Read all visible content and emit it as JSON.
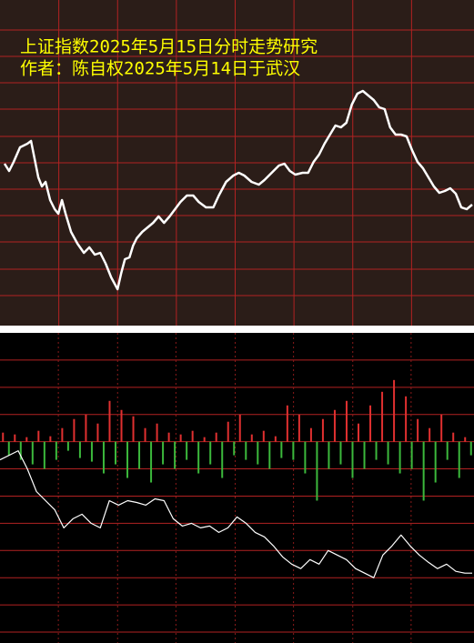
{
  "chart_data": [
    {
      "type": "line",
      "title": "上证指数2025年5月15日分时走势研究",
      "subtitle": "作者：陈自权2025年5月14日于武汉",
      "x": [
        5,
        10,
        15,
        22,
        30,
        34,
        38,
        42,
        46,
        50,
        55,
        60,
        64,
        68,
        72,
        78,
        85,
        92,
        98,
        104,
        110,
        116,
        122,
        129,
        133,
        137,
        142,
        146,
        150,
        156,
        162,
        168,
        174,
        180,
        186,
        192,
        198,
        205,
        212,
        218,
        226,
        234,
        240,
        248,
        256,
        262,
        268,
        276,
        284,
        290,
        298,
        306,
        312,
        318,
        324,
        332,
        338,
        344,
        350,
        356,
        362,
        368,
        374,
        380,
        386,
        392,
        398,
        404,
        410,
        416,
        422,
        428,
        434,
        440,
        446,
        452,
        458,
        464,
        470,
        476,
        482,
        488,
        494,
        500,
        506,
        512,
        518
      ],
      "values": [
        178,
        170,
        180,
        196,
        200,
        203,
        183,
        163,
        153,
        158,
        138,
        128,
        123,
        138,
        123,
        103,
        90,
        80,
        86,
        78,
        80,
        68,
        53,
        40,
        58,
        73,
        75,
        88,
        96,
        103,
        108,
        113,
        120,
        113,
        120,
        128,
        136,
        143,
        143,
        136,
        130,
        130,
        143,
        158,
        165,
        168,
        165,
        158,
        155,
        160,
        168,
        176,
        178,
        170,
        166,
        168,
        168,
        180,
        188,
        200,
        210,
        220,
        218,
        223,
        243,
        255,
        258,
        253,
        248,
        240,
        238,
        218,
        210,
        210,
        208,
        193,
        180,
        173,
        163,
        153,
        146,
        148,
        151,
        145,
        130,
        128,
        133
      ],
      "color": "#ffffff",
      "background": "#2b1d18",
      "grid_color": "#b22222",
      "title_color": "#ffff00",
      "xlim": [
        0,
        520
      ],
      "ylim": [
        0,
        358
      ],
      "xticks": [
        64.5,
        129,
        193.5,
        258,
        322.5,
        387,
        451.5
      ],
      "yticks": [
        325,
        296,
        267,
        238,
        208,
        179,
        150,
        121,
        92,
        62,
        33
      ],
      "grid": true
    },
    {
      "type": "bar",
      "categories": [
        null,
        null,
        null,
        null,
        null,
        null,
        null,
        null,
        null,
        null,
        null,
        null,
        null,
        null,
        null,
        null,
        null,
        null,
        null,
        null,
        null,
        null,
        null,
        null,
        null,
        null,
        null,
        null,
        null,
        null,
        null,
        null,
        null,
        null,
        null,
        null,
        null,
        null,
        null,
        null,
        null,
        null,
        null,
        null,
        null,
        null,
        null,
        null,
        null,
        null,
        null,
        null,
        null,
        null,
        null,
        null,
        null,
        null,
        null,
        null,
        null,
        null,
        null,
        null,
        null,
        null,
        null,
        null,
        null,
        null,
        null,
        null,
        null,
        null,
        null,
        null,
        null,
        null,
        null,
        null
      ],
      "values": [
        10,
        -15,
        8,
        -20,
        5,
        -25,
        12,
        -30,
        6,
        -20,
        15,
        -10,
        25,
        -18,
        30,
        -22,
        20,
        -35,
        45,
        -25,
        35,
        -40,
        28,
        -30,
        15,
        -45,
        20,
        -25,
        10,
        -30,
        8,
        -20,
        12,
        -35,
        5,
        -25,
        10,
        -40,
        22,
        -15,
        30,
        -20,
        8,
        -25,
        12,
        -30,
        6,
        -18,
        40,
        -20,
        30,
        -35,
        15,
        -65,
        25,
        -30,
        35,
        -25,
        45,
        -40,
        20,
        -30,
        40,
        -20,
        55,
        -25,
        68,
        -35,
        50,
        -30,
        25,
        -65,
        15,
        -45,
        30,
        -20,
        10,
        -40,
        5,
        -15
      ],
      "up_color": "#e03030",
      "down_color": "#3cb83c",
      "background": "#000000",
      "grid_color": "#b22222",
      "ylim": [
        -222,
        120
      ],
      "yticks": [
        90,
        60,
        30,
        0,
        -30,
        -60,
        -90,
        -120,
        -150,
        -180,
        -210
      ],
      "grid": true
    },
    {
      "type": "line",
      "x": [
        0,
        10,
        20,
        30,
        40,
        50,
        60,
        70,
        80,
        90,
        100,
        110,
        120,
        130,
        140,
        150,
        160,
        170,
        180,
        190,
        200,
        210,
        220,
        230,
        240,
        250,
        260,
        270,
        280,
        290,
        300,
        310,
        320,
        330,
        340,
        350,
        360,
        370,
        380,
        390,
        400,
        410,
        420,
        430,
        440,
        450,
        460,
        470,
        480,
        490,
        500,
        510,
        518
      ],
      "values": [
        202,
        207,
        212,
        192,
        167,
        157,
        147,
        127,
        137,
        142,
        132,
        127,
        157,
        152,
        157,
        155,
        152,
        159,
        157,
        137,
        129,
        132,
        127,
        129,
        122,
        127,
        139,
        132,
        122,
        117,
        107,
        95,
        87,
        82,
        92,
        87,
        102,
        97,
        92,
        82,
        77,
        72,
        97,
        107,
        119,
        107,
        97,
        89,
        82,
        87,
        79,
        77,
        77
      ],
      "color": "#ffffff",
      "grid_color": "#8b1a1a",
      "xlim": [
        0,
        520
      ],
      "ylim": [
        0,
        342
      ],
      "xticks": [
        64,
        129,
        193,
        258,
        322,
        387,
        451
      ],
      "grid": true
    }
  ]
}
